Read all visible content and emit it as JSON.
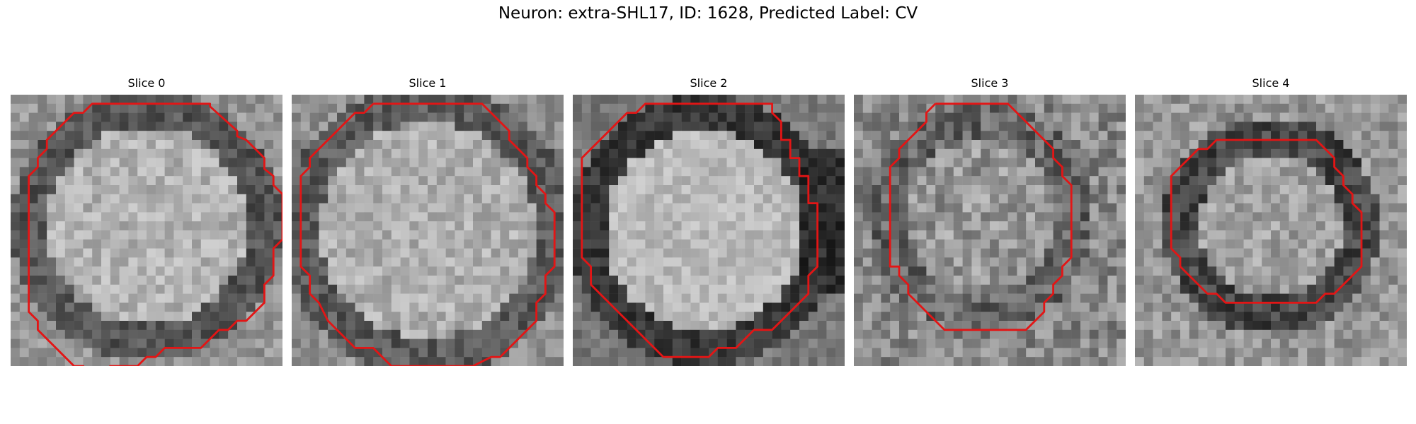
{
  "figure": {
    "title": "Neuron: extra-SHL17, ID: 1628, Predicted Label: CV"
  },
  "panels": [
    {
      "title": "Slice 0",
      "contour": [
        [
          11,
          1
        ],
        [
          22,
          1
        ],
        [
          22,
          1.3
        ],
        [
          25,
          4
        ],
        [
          25,
          4.6
        ],
        [
          26,
          5
        ],
        [
          27,
          6
        ],
        [
          28,
          7
        ],
        [
          28,
          8.2
        ],
        [
          29,
          9
        ],
        [
          29,
          10
        ],
        [
          30,
          11
        ],
        [
          30,
          16
        ],
        [
          29,
          17
        ],
        [
          29,
          20
        ],
        [
          28,
          21
        ],
        [
          28,
          23
        ],
        [
          26,
          25
        ],
        [
          25,
          25
        ],
        [
          24,
          26
        ],
        [
          23,
          26
        ],
        [
          21,
          28
        ],
        [
          17,
          28
        ],
        [
          16,
          29
        ],
        [
          15,
          29
        ],
        [
          14,
          30
        ],
        [
          11,
          30
        ],
        [
          10,
          31
        ],
        [
          9,
          31
        ],
        [
          8,
          30
        ],
        [
          7,
          30
        ],
        [
          6,
          29
        ],
        [
          5,
          28
        ],
        [
          4,
          27
        ],
        [
          3,
          26
        ],
        [
          3,
          25
        ],
        [
          2,
          24
        ],
        [
          2,
          22
        ],
        [
          2,
          9
        ],
        [
          3,
          8
        ],
        [
          3,
          7
        ],
        [
          4,
          6
        ],
        [
          4,
          5
        ],
        [
          5,
          4
        ],
        [
          6,
          3
        ],
        [
          7,
          2
        ],
        [
          8,
          2
        ],
        [
          9,
          1
        ]
      ]
    },
    {
      "title": "Slice 1",
      "contour": [
        [
          9,
          1
        ],
        [
          21,
          1
        ],
        [
          24,
          4
        ],
        [
          24,
          5
        ],
        [
          25,
          6
        ],
        [
          26,
          7
        ],
        [
          26,
          8
        ],
        [
          27,
          9
        ],
        [
          27,
          10
        ],
        [
          28,
          11
        ],
        [
          28,
          12
        ],
        [
          29,
          13
        ],
        [
          29,
          19
        ],
        [
          28,
          20
        ],
        [
          28,
          22
        ],
        [
          27,
          23
        ],
        [
          27,
          25
        ],
        [
          26,
          26
        ],
        [
          25,
          27
        ],
        [
          24,
          28
        ],
        [
          23,
          29
        ],
        [
          22,
          29
        ],
        [
          20,
          30
        ],
        [
          11,
          30
        ],
        [
          10,
          29
        ],
        [
          9,
          28
        ],
        [
          7,
          28
        ],
        [
          6,
          27
        ],
        [
          5,
          26
        ],
        [
          4,
          25
        ],
        [
          3,
          23
        ],
        [
          2,
          22
        ],
        [
          2,
          20
        ],
        [
          1,
          19
        ],
        [
          1,
          9
        ],
        [
          2,
          8
        ],
        [
          2,
          7
        ],
        [
          3,
          6
        ],
        [
          4,
          5
        ],
        [
          5,
          4
        ],
        [
          6,
          3
        ],
        [
          7,
          2
        ],
        [
          8,
          2
        ]
      ]
    },
    {
      "title": "Slice 2",
      "contour": [
        [
          9,
          1
        ],
        [
          22,
          1
        ],
        [
          22,
          2
        ],
        [
          23,
          3
        ],
        [
          23,
          5
        ],
        [
          24,
          5
        ],
        [
          24,
          7
        ],
        [
          25,
          7
        ],
        [
          25,
          8
        ],
        [
          25,
          9
        ],
        [
          26,
          9
        ],
        [
          26,
          10
        ],
        [
          26,
          12
        ],
        [
          27,
          12
        ],
        [
          27,
          19
        ],
        [
          26,
          20
        ],
        [
          26,
          22
        ],
        [
          25,
          23
        ],
        [
          24,
          24
        ],
        [
          23,
          25
        ],
        [
          22,
          26
        ],
        [
          20,
          26
        ],
        [
          19,
          27
        ],
        [
          18,
          28
        ],
        [
          16,
          28
        ],
        [
          15,
          29
        ],
        [
          10,
          29
        ],
        [
          9,
          28
        ],
        [
          8,
          27
        ],
        [
          7,
          26
        ],
        [
          6,
          25
        ],
        [
          5,
          24
        ],
        [
          4,
          23
        ],
        [
          3,
          22
        ],
        [
          2,
          21
        ],
        [
          2,
          19
        ],
        [
          1,
          18
        ],
        [
          1,
          7
        ],
        [
          2,
          6
        ],
        [
          3,
          5
        ],
        [
          4,
          4
        ],
        [
          5,
          3
        ],
        [
          6,
          2
        ],
        [
          7,
          2
        ],
        [
          8,
          1
        ]
      ]
    },
    {
      "title": "Slice 3",
      "contour": [
        [
          9,
          1
        ],
        [
          17,
          1
        ],
        [
          18,
          2
        ],
        [
          19,
          3
        ],
        [
          20,
          4
        ],
        [
          21,
          5
        ],
        [
          22,
          6
        ],
        [
          22,
          7
        ],
        [
          23,
          8
        ],
        [
          23,
          9
        ],
        [
          24,
          10
        ],
        [
          24,
          18
        ],
        [
          23,
          19
        ],
        [
          23,
          20
        ],
        [
          22,
          21
        ],
        [
          22,
          22
        ],
        [
          21,
          23
        ],
        [
          21,
          24
        ],
        [
          20,
          25
        ],
        [
          19,
          26
        ],
        [
          10,
          26
        ],
        [
          9,
          25
        ],
        [
          8,
          24
        ],
        [
          7,
          23
        ],
        [
          6,
          22
        ],
        [
          6,
          21
        ],
        [
          5,
          20
        ],
        [
          5,
          19
        ],
        [
          4,
          19
        ],
        [
          4,
          8
        ],
        [
          5,
          7
        ],
        [
          5,
          6
        ],
        [
          6,
          5
        ],
        [
          7,
          4
        ],
        [
          8,
          3
        ],
        [
          8,
          2
        ]
      ]
    },
    {
      "title": "Slice 4",
      "contour": [
        [
          11,
          5
        ],
        [
          20,
          5
        ],
        [
          21,
          6
        ],
        [
          22,
          7
        ],
        [
          22,
          8
        ],
        [
          23,
          9
        ],
        [
          23,
          10
        ],
        [
          24,
          11
        ],
        [
          24,
          12
        ],
        [
          25,
          13
        ],
        [
          25,
          19
        ],
        [
          24,
          20
        ],
        [
          23,
          21
        ],
        [
          22,
          22
        ],
        [
          21,
          22
        ],
        [
          20,
          23
        ],
        [
          10,
          23
        ],
        [
          9,
          22
        ],
        [
          8,
          22
        ],
        [
          7,
          21
        ],
        [
          6,
          20
        ],
        [
          5,
          19
        ],
        [
          5,
          18
        ],
        [
          4,
          17
        ],
        [
          4,
          9
        ],
        [
          5,
          8
        ],
        [
          6,
          7
        ],
        [
          7,
          6
        ],
        [
          8,
          6
        ],
        [
          9,
          5
        ]
      ]
    }
  ]
}
